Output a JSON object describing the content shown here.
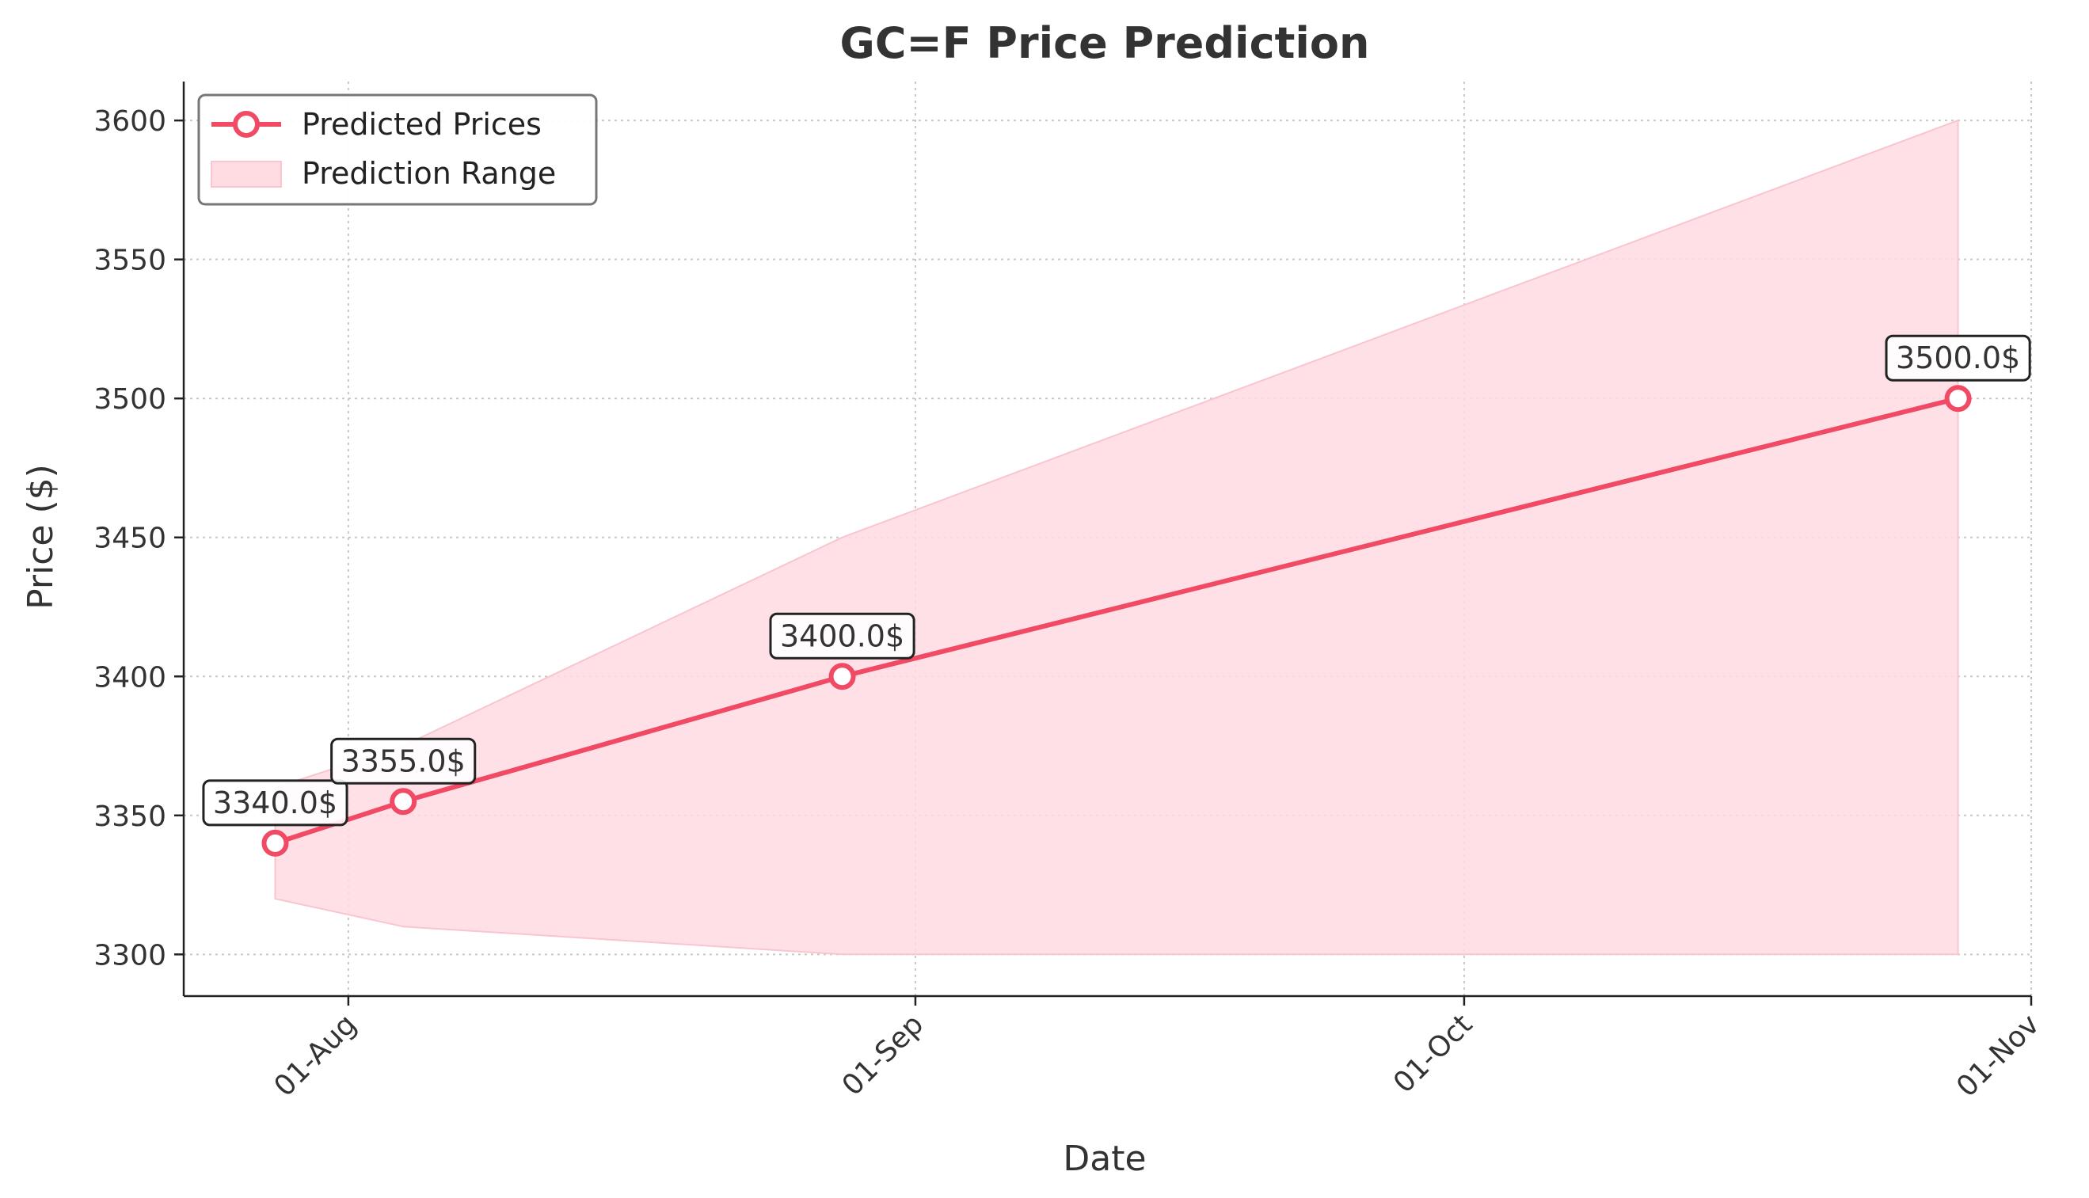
{
  "chart_data": {
    "type": "line",
    "title": "GC=F Price Prediction",
    "xlabel": "Date",
    "ylabel": "Price ($)",
    "x_ticks": [
      {
        "date": "2025-08-01",
        "label": "01-Aug"
      },
      {
        "date": "2025-09-01",
        "label": "01-Sep"
      },
      {
        "date": "2025-10-01",
        "label": "01-Oct"
      },
      {
        "date": "2025-11-01",
        "label": "01-Nov"
      }
    ],
    "y_ticks": [
      3300,
      3350,
      3400,
      3450,
      3500,
      3550,
      3600
    ],
    "xlim": [
      "2025-07-23",
      "2025-11-01"
    ],
    "ylim": [
      3285,
      3614
    ],
    "grid": true,
    "legend_position": "top-left",
    "series": [
      {
        "name": "Predicted Prices",
        "color": "#f04a64",
        "x": [
          "2025-07-28",
          "2025-08-04",
          "2025-08-28",
          "2025-10-28"
        ],
        "values": [
          3340,
          3355,
          3400,
          3500
        ],
        "labels": [
          "3340.0$",
          "3355.0$",
          "3400.0$",
          "3500.0$"
        ]
      },
      {
        "name": "Prediction Range",
        "color": "#ffdbe2",
        "x": [
          "2025-07-28",
          "2025-08-04",
          "2025-08-28",
          "2025-10-28"
        ],
        "lower": [
          3320,
          3310,
          3300,
          3300
        ],
        "upper": [
          3360,
          3375,
          3450,
          3600
        ]
      }
    ]
  }
}
